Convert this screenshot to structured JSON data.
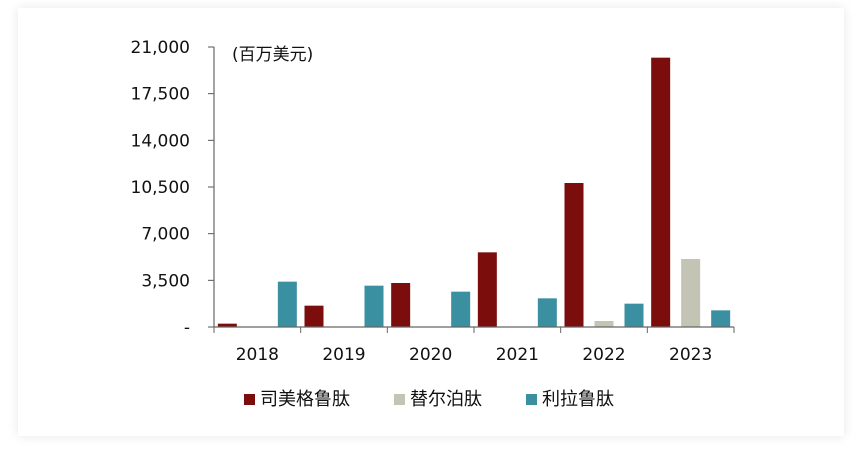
{
  "chart_data": {
    "type": "bar",
    "unit_label": "(百万美元)",
    "categories": [
      "2018",
      "2019",
      "2020",
      "2021",
      "2022",
      "2023"
    ],
    "series": [
      {
        "name": "司美格鲁肽",
        "color": "#7B0D0D",
        "values": [
          250,
          1600,
          3300,
          5600,
          10800,
          20200
        ]
      },
      {
        "name": "替尔泊肽",
        "color": "#C4C4B4",
        "values": [
          0,
          0,
          0,
          0,
          450,
          5100
        ]
      },
      {
        "name": "利拉鲁肽",
        "color": "#3A8FA0",
        "values": [
          3400,
          3100,
          2650,
          2150,
          1750,
          1250
        ]
      }
    ],
    "y_ticks": [
      "-",
      "3,500",
      "7,000",
      "10,500",
      "14,000",
      "17,500",
      "21,000"
    ],
    "ylim": [
      0,
      21000
    ],
    "grid": false,
    "legend_position": "bottom"
  }
}
